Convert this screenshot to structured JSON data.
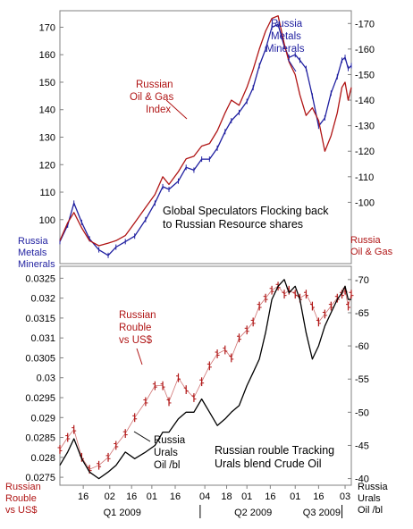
{
  "colors": {
    "blue": "#1f1fa0",
    "red": "#b01515",
    "black": "#000000",
    "frame": "#808080"
  },
  "top_panel": {
    "left_label": [
      "Russia",
      "Metals",
      "Minerals"
    ],
    "right_label": [
      "Russia",
      "Oil & Gas"
    ],
    "title": [
      "Global Speculators Flocking back",
      "to Russian Resource shares"
    ],
    "annotations": {
      "oil_gas": [
        "Russian",
        "Oil & Gas",
        "Index"
      ],
      "metals": [
        "Russia",
        "Metals",
        "Minerals"
      ]
    }
  },
  "bottom_panel": {
    "left_label": [
      "Russian",
      "Rouble",
      "vs US$"
    ],
    "right_label": [
      "Russia",
      "Urals",
      "Oil /bl"
    ],
    "title": [
      "Russian rouble Tracking",
      "Urals blend Crude Oil"
    ],
    "annotations": {
      "rouble": [
        "Russian",
        "Rouble",
        "vs US$"
      ],
      "urals": [
        "Russia",
        "Urals",
        "Oil /bl"
      ]
    }
  },
  "x_axis": {
    "day_ticks": [
      "16",
      "02",
      "16",
      "01",
      "16",
      "04",
      "18",
      "01",
      "16",
      "01",
      "16",
      "03"
    ],
    "quarters": [
      "Q1 2009",
      "Q2 2009",
      "Q3 2009"
    ]
  },
  "chart_data": [
    {
      "type": "line",
      "title": "Global Speculators Flocking back to Russian Resource shares",
      "x_range": [
        "2009-01-01",
        "2009-07-07"
      ],
      "left_axis": {
        "label": "Russia Metals Minerals",
        "ticks": [
          100,
          110,
          120,
          130,
          140,
          150,
          160,
          170
        ],
        "range": [
          84,
          176
        ]
      },
      "right_axis": {
        "label": "Russia Oil & Gas",
        "ticks": [
          100,
          110,
          120,
          130,
          140,
          150,
          160,
          170
        ],
        "range": [
          76,
          175
        ]
      },
      "series": [
        {
          "name": "Russia Metals Minerals",
          "axis": "left",
          "color": "#1f1fa0",
          "x": [
            "2009-01-01",
            "2009-01-06",
            "2009-01-10",
            "2009-01-15",
            "2009-01-20",
            "2009-01-26",
            "2009-02-01",
            "2009-02-06",
            "2009-02-12",
            "2009-02-18",
            "2009-02-25",
            "2009-03-03",
            "2009-03-08",
            "2009-03-12",
            "2009-03-18",
            "2009-03-23",
            "2009-03-28",
            "2009-04-02",
            "2009-04-07",
            "2009-04-12",
            "2009-04-17",
            "2009-04-21",
            "2009-04-26",
            "2009-05-01",
            "2009-05-05",
            "2009-05-09",
            "2009-05-13",
            "2009-05-17",
            "2009-05-21",
            "2009-05-25",
            "2009-05-28",
            "2009-06-01",
            "2009-06-04",
            "2009-06-08",
            "2009-06-12",
            "2009-06-16",
            "2009-06-20",
            "2009-06-24",
            "2009-06-28",
            "2009-07-01",
            "2009-07-03",
            "2009-07-05",
            "2009-07-07"
          ],
          "values": [
            92,
            98,
            106,
            99,
            93,
            89,
            87,
            90,
            92,
            94,
            100,
            106,
            112,
            111,
            114,
            119,
            118,
            122,
            122,
            126,
            132,
            136,
            139,
            143,
            148,
            156,
            162,
            170,
            171,
            163,
            159,
            160,
            158,
            155,
            145,
            134,
            137,
            146,
            152,
            158,
            159,
            155,
            156
          ]
        },
        {
          "name": "Russian Oil & Gas Index",
          "axis": "right",
          "color": "#b01515",
          "x": [
            "2009-01-01",
            "2009-01-06",
            "2009-01-10",
            "2009-01-15",
            "2009-01-20",
            "2009-01-26",
            "2009-02-01",
            "2009-02-06",
            "2009-02-12",
            "2009-02-18",
            "2009-02-25",
            "2009-03-03",
            "2009-03-08",
            "2009-03-12",
            "2009-03-18",
            "2009-03-23",
            "2009-03-28",
            "2009-04-02",
            "2009-04-07",
            "2009-04-12",
            "2009-04-17",
            "2009-04-21",
            "2009-04-26",
            "2009-05-01",
            "2009-05-05",
            "2009-05-09",
            "2009-05-13",
            "2009-05-17",
            "2009-05-21",
            "2009-05-25",
            "2009-05-28",
            "2009-06-01",
            "2009-06-04",
            "2009-06-08",
            "2009-06-12",
            "2009-06-16",
            "2009-06-20",
            "2009-06-24",
            "2009-06-28",
            "2009-07-01",
            "2009-07-03",
            "2009-07-05",
            "2009-07-07"
          ],
          "values": [
            85,
            92,
            96,
            90,
            85,
            83,
            84,
            85,
            87,
            92,
            98,
            103,
            110,
            107,
            112,
            117,
            118,
            122,
            123,
            128,
            135,
            140,
            138,
            145,
            152,
            160,
            167,
            172,
            173,
            162,
            155,
            150,
            142,
            134,
            137,
            132,
            120,
            126,
            135,
            145,
            147,
            140,
            145
          ]
        }
      ]
    },
    {
      "type": "line",
      "title": "Russian rouble Tracking Urals blend Crude Oil",
      "x_range": [
        "2009-01-01",
        "2009-07-07"
      ],
      "left_axis": {
        "label": "Russian Rouble vs US$",
        "ticks": [
          0.0275,
          0.028,
          0.0285,
          0.029,
          0.0295,
          0.03,
          0.0305,
          0.031,
          0.0315,
          0.032,
          0.0325
        ],
        "range": [
          0.0273,
          0.0328
        ]
      },
      "right_axis": {
        "label": "Russia Urals Oil /bl",
        "ticks": [
          40,
          45,
          50,
          55,
          60,
          65,
          70
        ],
        "range": [
          39,
          72
        ]
      },
      "series": [
        {
          "name": "Russian Rouble vs US$",
          "axis": "left",
          "color": "#b01515",
          "style": "ohlc",
          "x": [
            "2009-01-01",
            "2009-01-06",
            "2009-01-10",
            "2009-01-15",
            "2009-01-20",
            "2009-01-26",
            "2009-02-01",
            "2009-02-06",
            "2009-02-12",
            "2009-02-18",
            "2009-02-25",
            "2009-03-03",
            "2009-03-08",
            "2009-03-12",
            "2009-03-18",
            "2009-03-23",
            "2009-03-28",
            "2009-04-02",
            "2009-04-07",
            "2009-04-12",
            "2009-04-17",
            "2009-04-21",
            "2009-04-26",
            "2009-05-01",
            "2009-05-05",
            "2009-05-09",
            "2009-05-13",
            "2009-05-17",
            "2009-05-21",
            "2009-05-25",
            "2009-05-28",
            "2009-06-01",
            "2009-06-04",
            "2009-06-08",
            "2009-06-12",
            "2009-06-16",
            "2009-06-20",
            "2009-06-24",
            "2009-06-28",
            "2009-07-01",
            "2009-07-03",
            "2009-07-05",
            "2009-07-07"
          ],
          "values": [
            0.0282,
            0.0285,
            0.0287,
            0.028,
            0.0277,
            0.0278,
            0.028,
            0.0283,
            0.0286,
            0.029,
            0.0294,
            0.0298,
            0.0298,
            0.0294,
            0.03,
            0.0297,
            0.0295,
            0.0299,
            0.0303,
            0.0306,
            0.0307,
            0.0305,
            0.031,
            0.0312,
            0.0314,
            0.0318,
            0.032,
            0.0322,
            0.0323,
            0.0321,
            0.0322,
            0.0321,
            0.032,
            0.0321,
            0.0318,
            0.0314,
            0.0316,
            0.0318,
            0.032,
            0.0321,
            0.0322,
            0.0318,
            0.0321
          ]
        },
        {
          "name": "Russia Urals Oil /bl",
          "axis": "right",
          "color": "#000000",
          "x": [
            "2009-01-01",
            "2009-01-06",
            "2009-01-10",
            "2009-01-15",
            "2009-01-20",
            "2009-01-26",
            "2009-02-01",
            "2009-02-06",
            "2009-02-12",
            "2009-02-18",
            "2009-02-25",
            "2009-03-03",
            "2009-03-08",
            "2009-03-12",
            "2009-03-18",
            "2009-03-23",
            "2009-03-28",
            "2009-04-02",
            "2009-04-07",
            "2009-04-12",
            "2009-04-17",
            "2009-04-21",
            "2009-04-26",
            "2009-05-01",
            "2009-05-05",
            "2009-05-09",
            "2009-05-13",
            "2009-05-17",
            "2009-05-21",
            "2009-05-25",
            "2009-05-28",
            "2009-06-01",
            "2009-06-04",
            "2009-06-08",
            "2009-06-12",
            "2009-06-16",
            "2009-06-20",
            "2009-06-24",
            "2009-06-28",
            "2009-07-01",
            "2009-07-03",
            "2009-07-05",
            "2009-07-07"
          ],
          "values": [
            42,
            44,
            46,
            43,
            41,
            40,
            41,
            42,
            44,
            43,
            44,
            45,
            47,
            47,
            49,
            50,
            50,
            52,
            50,
            48,
            49,
            50,
            51,
            54,
            56,
            58,
            62,
            67,
            69,
            70,
            68,
            69,
            67,
            62,
            58,
            60,
            63,
            65,
            67,
            68,
            69,
            67,
            67
          ]
        }
      ]
    }
  ]
}
